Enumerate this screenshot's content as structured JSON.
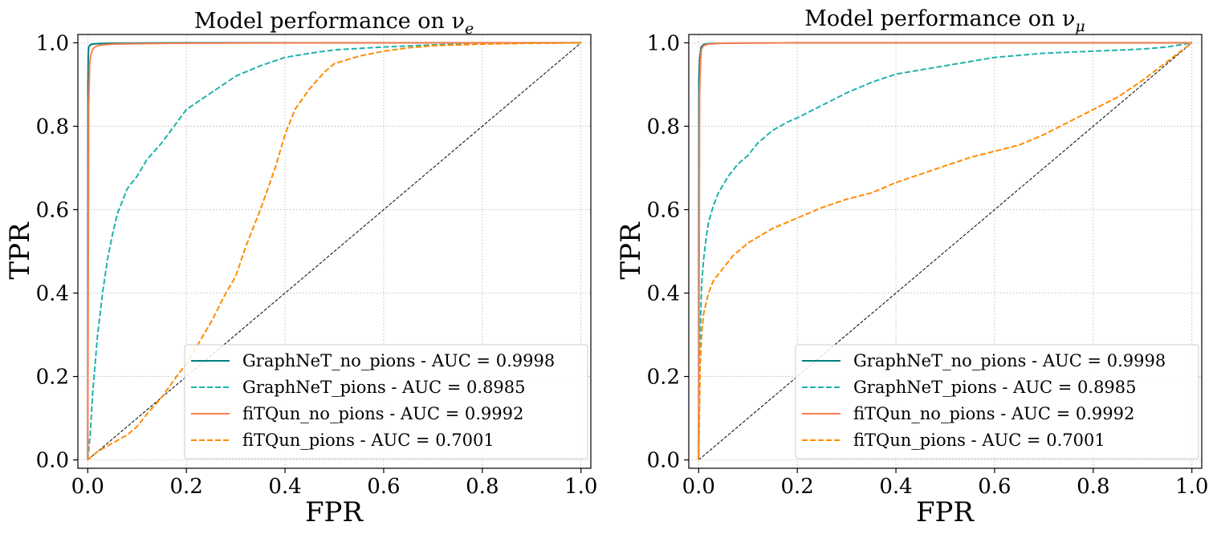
{
  "chart_data": [
    {
      "type": "line",
      "title": "Model performance on ν",
      "title_subscript": "e",
      "xlabel": "FPR",
      "ylabel": "TPR",
      "xlim": [
        -0.02,
        1.02
      ],
      "ylim": [
        -0.02,
        1.02
      ],
      "xticks": [
        0.0,
        0.2,
        0.4,
        0.6,
        0.8,
        1.0
      ],
      "yticks": [
        0.0,
        0.2,
        0.4,
        0.6,
        0.8,
        1.0
      ],
      "xtick_labels": [
        "0.0",
        "0.2",
        "0.4",
        "0.6",
        "0.8",
        "1.0"
      ],
      "ytick_labels": [
        "0.0",
        "0.2",
        "0.4",
        "0.6",
        "0.8",
        "1.0"
      ],
      "grid": true,
      "legend_position": "lower-right",
      "diagonal": {
        "x": [
          0,
          1
        ],
        "y": [
          0,
          1
        ],
        "color": "#000000",
        "style": "dashed"
      },
      "series": [
        {
          "name": "GraphNeT_no_pions - AUC = 0.9998",
          "color": "#008080",
          "style": "solid",
          "x": [
            0,
            0.0005,
            0.001,
            0.002,
            0.005,
            0.01,
            0.02,
            0.05,
            0.2,
            0.5,
            1.0
          ],
          "y": [
            0,
            0.9,
            0.97,
            0.99,
            0.995,
            0.997,
            0.998,
            0.999,
            1.0,
            1.0,
            1.0
          ]
        },
        {
          "name": "GraphNeT_pions - AUC = 0.8985",
          "color": "#20b2aa",
          "style": "dashed",
          "x": [
            0,
            0.005,
            0.01,
            0.02,
            0.03,
            0.04,
            0.05,
            0.06,
            0.07,
            0.08,
            0.1,
            0.12,
            0.15,
            0.2,
            0.25,
            0.3,
            0.35,
            0.4,
            0.45,
            0.5,
            0.6,
            0.7,
            0.8,
            0.9,
            1.0
          ],
          "y": [
            0,
            0.06,
            0.16,
            0.3,
            0.4,
            0.48,
            0.54,
            0.59,
            0.62,
            0.65,
            0.68,
            0.72,
            0.76,
            0.84,
            0.88,
            0.92,
            0.945,
            0.965,
            0.975,
            0.983,
            0.99,
            0.995,
            0.998,
            0.999,
            1.0
          ]
        },
        {
          "name": "fiTQun_no_pions - AUC = 0.9992",
          "color": "#ff7f50",
          "style": "solid",
          "x": [
            0,
            0.002,
            0.004,
            0.006,
            0.01,
            0.015,
            0.02,
            0.03,
            0.05,
            0.1,
            0.2,
            0.5,
            1.0
          ],
          "y": [
            0,
            0.85,
            0.95,
            0.97,
            0.985,
            0.99,
            0.993,
            0.995,
            0.997,
            0.998,
            0.999,
            1.0,
            1.0
          ]
        },
        {
          "name": "fiTQun_pions - AUC = 0.7001",
          "color": "#ff8c00",
          "style": "dashed",
          "x": [
            0,
            0.02,
            0.05,
            0.08,
            0.1,
            0.12,
            0.15,
            0.18,
            0.2,
            0.22,
            0.25,
            0.28,
            0.3,
            0.32,
            0.35,
            0.38,
            0.4,
            0.42,
            0.45,
            0.48,
            0.5,
            0.55,
            0.6,
            0.65,
            0.7,
            0.8,
            0.9,
            1.0
          ],
          "y": [
            0,
            0.02,
            0.04,
            0.06,
            0.08,
            0.11,
            0.15,
            0.2,
            0.23,
            0.27,
            0.33,
            0.4,
            0.44,
            0.51,
            0.6,
            0.7,
            0.78,
            0.84,
            0.89,
            0.93,
            0.95,
            0.968,
            0.98,
            0.988,
            0.993,
            0.997,
            0.999,
            1.0
          ]
        }
      ]
    },
    {
      "type": "line",
      "title": "Model performance on ν",
      "title_subscript": "μ",
      "xlabel": "FPR",
      "ylabel": "TPR",
      "xlim": [
        -0.02,
        1.02
      ],
      "ylim": [
        -0.02,
        1.02
      ],
      "xticks": [
        0.0,
        0.2,
        0.4,
        0.6,
        0.8,
        1.0
      ],
      "yticks": [
        0.0,
        0.2,
        0.4,
        0.6,
        0.8,
        1.0
      ],
      "xtick_labels": [
        "0.0",
        "0.2",
        "0.4",
        "0.6",
        "0.8",
        "1.0"
      ],
      "ytick_labels": [
        "0.0",
        "0.2",
        "0.4",
        "0.6",
        "0.8",
        "1.0"
      ],
      "grid": true,
      "legend_position": "lower-right",
      "diagonal": {
        "x": [
          0,
          1
        ],
        "y": [
          0,
          1
        ],
        "color": "#000000",
        "style": "dashed"
      },
      "series": [
        {
          "name": "GraphNeT_no_pions - AUC = 0.9998",
          "color": "#008080",
          "style": "solid",
          "x": [
            0,
            0.0005,
            0.002,
            0.005,
            0.01,
            0.02,
            0.05,
            0.2,
            0.5,
            1.0
          ],
          "y": [
            0,
            0.91,
            0.96,
            0.99,
            0.996,
            0.998,
            0.999,
            1.0,
            1.0,
            1.0
          ]
        },
        {
          "name": "GraphNeT_pions - AUC = 0.8985",
          "color": "#20b2aa",
          "style": "dashed",
          "x": [
            0,
            0.003,
            0.006,
            0.01,
            0.015,
            0.02,
            0.03,
            0.04,
            0.05,
            0.06,
            0.08,
            0.1,
            0.12,
            0.15,
            0.18,
            0.2,
            0.25,
            0.3,
            0.35,
            0.4,
            0.5,
            0.6,
            0.7,
            0.8,
            0.9,
            0.95,
            1.0
          ],
          "y": [
            0,
            0.3,
            0.42,
            0.48,
            0.53,
            0.57,
            0.61,
            0.64,
            0.66,
            0.68,
            0.71,
            0.73,
            0.76,
            0.79,
            0.81,
            0.82,
            0.85,
            0.88,
            0.905,
            0.925,
            0.945,
            0.965,
            0.975,
            0.98,
            0.985,
            0.99,
            1.0
          ]
        },
        {
          "name": "fiTQun_no_pions - AUC = 0.9992",
          "color": "#ff7f50",
          "style": "solid",
          "x": [
            0,
            0.002,
            0.004,
            0.006,
            0.01,
            0.02,
            0.05,
            0.2,
            0.5,
            1.0
          ],
          "y": [
            0,
            0.88,
            0.96,
            0.985,
            0.993,
            0.997,
            0.999,
            1.0,
            1.0,
            1.0
          ]
        },
        {
          "name": "fiTQun_pions - AUC = 0.7001",
          "color": "#ff8c00",
          "style": "dashed",
          "x": [
            0,
            0.003,
            0.006,
            0.01,
            0.02,
            0.03,
            0.05,
            0.07,
            0.1,
            0.15,
            0.2,
            0.25,
            0.3,
            0.35,
            0.4,
            0.45,
            0.5,
            0.55,
            0.6,
            0.65,
            0.7,
            0.75,
            0.8,
            0.85,
            0.9,
            0.95,
            1.0
          ],
          "y": [
            0,
            0.22,
            0.3,
            0.35,
            0.4,
            0.43,
            0.46,
            0.49,
            0.52,
            0.555,
            0.58,
            0.605,
            0.625,
            0.64,
            0.665,
            0.685,
            0.705,
            0.725,
            0.74,
            0.755,
            0.78,
            0.81,
            0.84,
            0.87,
            0.91,
            0.955,
            1.0
          ]
        }
      ]
    }
  ]
}
